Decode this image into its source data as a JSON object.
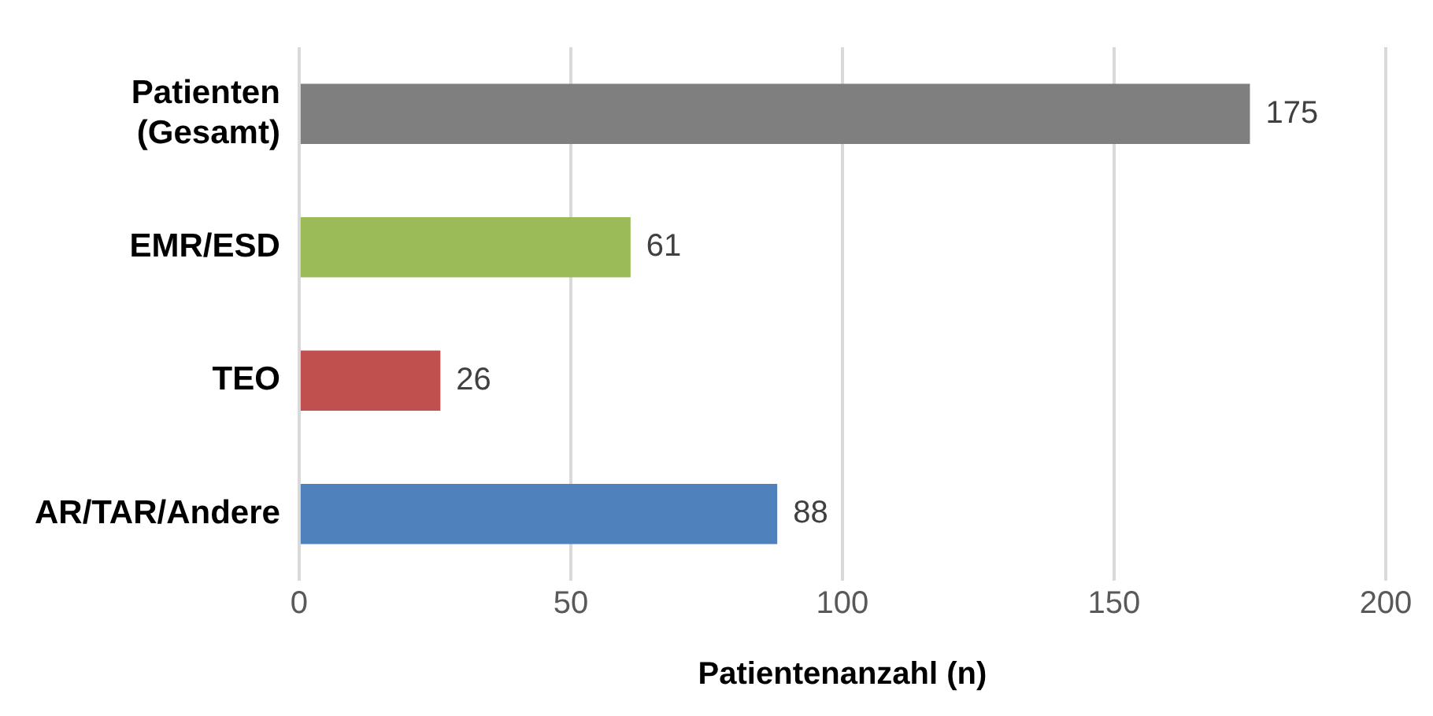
{
  "chart_data": {
    "type": "bar",
    "orientation": "horizontal",
    "xlabel": "Patientenanzahl (n)",
    "categories": [
      "Patienten (Gesamt)",
      "EMR/ESD",
      "TEO",
      "AR/TAR/Andere"
    ],
    "values": [
      175,
      61,
      26,
      88
    ],
    "colors": [
      "#7f7f7f",
      "#9bbb59",
      "#c0504d",
      "#4f81bd"
    ],
    "xlim": [
      0,
      200
    ],
    "xticks": [
      0,
      50,
      100,
      150,
      200
    ],
    "grid": "x",
    "legend": false,
    "data_labels": true
  }
}
